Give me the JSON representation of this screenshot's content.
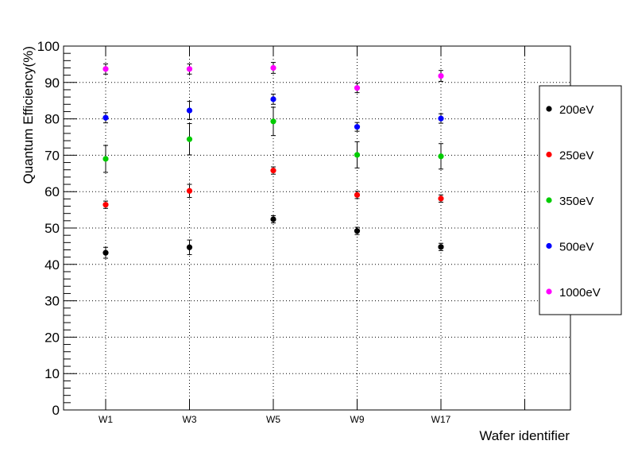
{
  "chart_data": {
    "type": "scatter",
    "title": "",
    "xlabel": "Wafer identifier",
    "ylabel": "Quantum Efficiency(%)",
    "categories": [
      "W1",
      "W3",
      "W5",
      "W9",
      "W17"
    ],
    "ylim": [
      0,
      100
    ],
    "y_ticks": [
      0,
      10,
      20,
      30,
      40,
      50,
      60,
      70,
      80,
      90,
      100
    ],
    "grid": true,
    "legend_position": "right",
    "series": [
      {
        "name": "200eV",
        "color": "#000000",
        "values": [
          43.2,
          44.7,
          52.4,
          49.2,
          44.8
        ],
        "errors": [
          1.5,
          2.0,
          1.0,
          1.0,
          1.0
        ]
      },
      {
        "name": "250eV",
        "color": "#ff0000",
        "values": [
          56.4,
          60.2,
          65.8,
          59.1,
          58.1
        ],
        "errors": [
          1.0,
          1.8,
          1.0,
          1.0,
          1.0
        ]
      },
      {
        "name": "350eV",
        "color": "#00cc00",
        "values": [
          69.0,
          74.4,
          79.3,
          70.1,
          69.7
        ],
        "errors": [
          3.7,
          4.3,
          3.9,
          3.6,
          3.5
        ]
      },
      {
        "name": "500eV",
        "color": "#0000ff",
        "values": [
          80.3,
          82.3,
          85.4,
          77.8,
          80.1
        ],
        "errors": [
          1.4,
          2.5,
          1.4,
          1.2,
          1.3
        ]
      },
      {
        "name": "1000eV",
        "color": "#ff00ff",
        "values": [
          93.7,
          93.7,
          94.0,
          88.5,
          91.8
        ],
        "errors": [
          1.4,
          1.4,
          1.5,
          1.3,
          1.5
        ]
      }
    ]
  }
}
